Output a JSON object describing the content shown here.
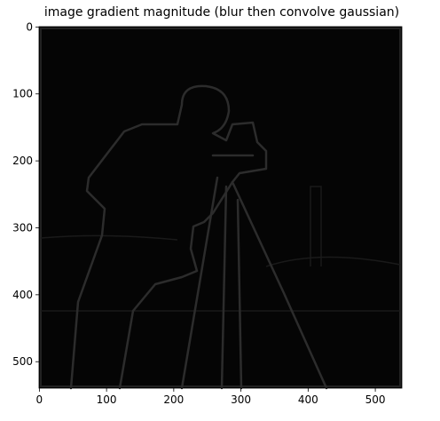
{
  "chart_data": {
    "type": "image",
    "title": "image gradient magnitude (blur then convolve gaussian)",
    "xlim": [
      -0.5,
      539.5
    ],
    "xticks": [
      0,
      100,
      200,
      300,
      400,
      500
    ],
    "ylim": [
      539.5,
      -0.5
    ],
    "yticks": [
      0,
      100,
      200,
      300,
      400,
      500
    ]
  }
}
